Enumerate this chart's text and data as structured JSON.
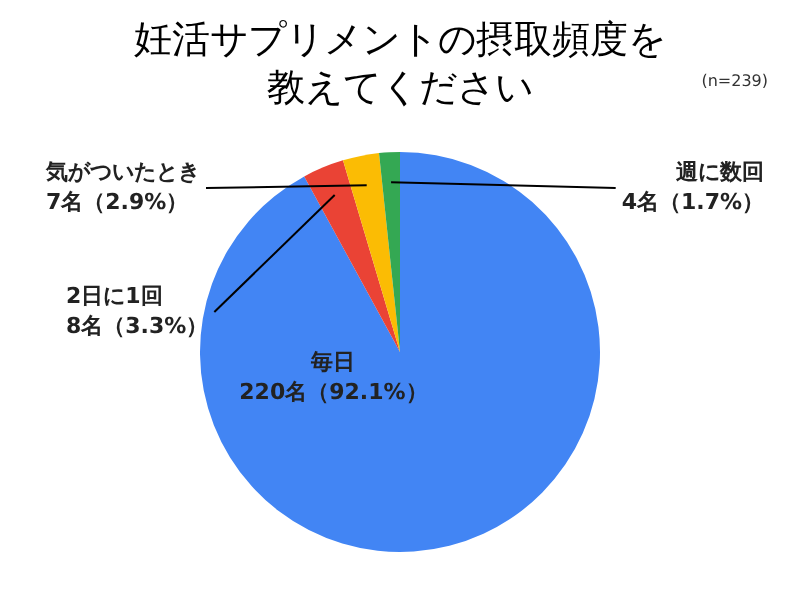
{
  "chart_data": {
    "type": "pie",
    "title": "妊活サプリメントの摂取頻度を教えてください",
    "annotations": [
      "(n=239)"
    ],
    "categories": [
      "毎日",
      "2日に1回",
      "気がついたとき",
      "週に数回"
    ],
    "values": [
      220,
      8,
      7,
      4
    ],
    "value_labels": [
      "220名（92.1%）",
      "8名（3.3%）",
      "7名（2.9%）",
      "4名（1.7%）"
    ],
    "colors": [
      "#4285f4",
      "#ea4335",
      "#fbbc04",
      "#34a853"
    ]
  }
}
